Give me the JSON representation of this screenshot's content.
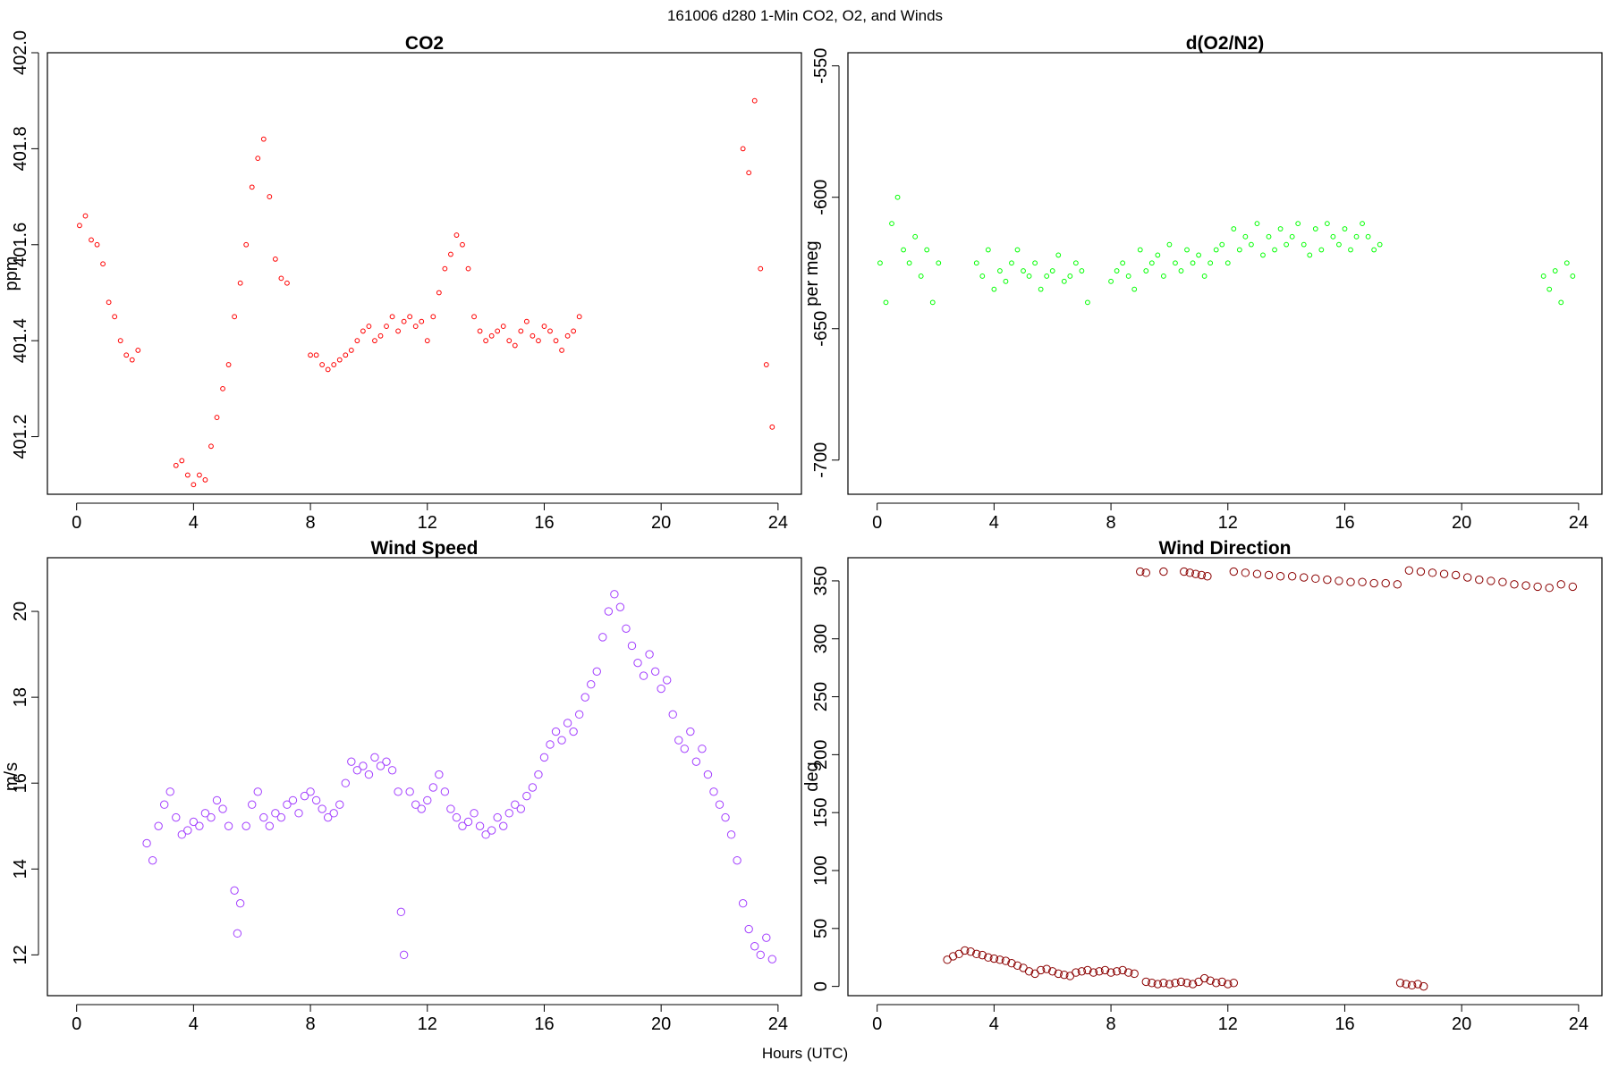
{
  "figure": {
    "title": "161006   d280   1-Min CO2, O2, and Winds",
    "xlabel": "Hours (UTC)"
  },
  "chart_data": [
    {
      "type": "scatter",
      "title": "CO2",
      "ylabel": "ppm",
      "xlim": [
        -1,
        24.8
      ],
      "ylim": [
        401.08,
        402.0
      ],
      "xticks": [
        "0",
        "4",
        "8",
        "12",
        "16",
        "20",
        "24"
      ],
      "yticks": [
        "401.2",
        "401.4",
        "401.6",
        "401.8",
        "402.0"
      ],
      "color": "#ff0000",
      "series": [
        {
          "x": [
            0.1,
            0.3,
            0.5,
            0.7,
            0.9,
            1.1,
            1.3,
            1.5,
            1.7,
            1.9,
            2.1,
            3.4,
            3.6,
            3.8,
            4.0,
            4.2,
            4.4,
            4.6,
            4.8,
            5.0,
            5.2,
            5.4,
            5.6,
            5.8,
            6.0,
            6.2,
            6.4,
            6.6,
            6.8,
            7.0,
            7.2,
            8.0,
            8.2,
            8.4,
            8.6,
            8.8,
            9.0,
            9.2,
            9.4,
            9.6,
            9.8,
            10.0,
            10.2,
            10.4,
            10.6,
            10.8,
            11.0,
            11.2,
            11.4,
            11.6,
            11.8,
            12.0,
            12.2,
            12.4,
            12.6,
            12.8,
            13.0,
            13.2,
            13.4,
            13.6,
            13.8,
            14.0,
            14.2,
            14.4,
            14.6,
            14.8,
            15.0,
            15.2,
            15.4,
            15.6,
            15.8,
            16.0,
            16.2,
            16.4,
            16.6,
            16.8,
            17.0,
            17.2,
            22.8,
            23.0,
            23.2,
            23.4,
            23.6,
            23.8
          ],
          "y": [
            401.64,
            401.66,
            401.61,
            401.6,
            401.56,
            401.48,
            401.45,
            401.4,
            401.37,
            401.36,
            401.38,
            401.14,
            401.15,
            401.12,
            401.1,
            401.12,
            401.11,
            401.18,
            401.24,
            401.3,
            401.35,
            401.45,
            401.52,
            401.6,
            401.72,
            401.78,
            401.82,
            401.7,
            401.57,
            401.53,
            401.52,
            401.37,
            401.37,
            401.35,
            401.34,
            401.35,
            401.36,
            401.37,
            401.38,
            401.4,
            401.42,
            401.43,
            401.4,
            401.41,
            401.43,
            401.45,
            401.42,
            401.44,
            401.45,
            401.43,
            401.44,
            401.4,
            401.45,
            401.5,
            401.55,
            401.58,
            401.62,
            401.6,
            401.55,
            401.45,
            401.42,
            401.4,
            401.41,
            401.42,
            401.43,
            401.4,
            401.39,
            401.42,
            401.44,
            401.41,
            401.4,
            401.43,
            401.42,
            401.4,
            401.38,
            401.41,
            401.42,
            401.45,
            401.8,
            401.75,
            401.9,
            401.55,
            401.35,
            401.22
          ]
        }
      ]
    },
    {
      "type": "scatter",
      "title": "d(O2/N2)",
      "ylabel": "per meg",
      "xlim": [
        -1,
        24.8
      ],
      "ylim": [
        -713,
        -545
      ],
      "xticks": [
        "0",
        "4",
        "8",
        "12",
        "16",
        "20",
        "24"
      ],
      "yticks": [
        "-700",
        "-650",
        "-600",
        "-550"
      ],
      "color": "#00ff00",
      "series": [
        {
          "x": [
            0.1,
            0.3,
            0.5,
            0.7,
            0.9,
            1.1,
            1.3,
            1.5,
            1.7,
            1.9,
            2.1,
            3.4,
            3.6,
            3.8,
            4.0,
            4.2,
            4.4,
            4.6,
            4.8,
            5.0,
            5.2,
            5.4,
            5.6,
            5.8,
            6.0,
            6.2,
            6.4,
            6.6,
            6.8,
            7.0,
            7.2,
            8.0,
            8.2,
            8.4,
            8.6,
            8.8,
            9.0,
            9.2,
            9.4,
            9.6,
            9.8,
            10.0,
            10.2,
            10.4,
            10.6,
            10.8,
            11.0,
            11.2,
            11.4,
            11.6,
            11.8,
            12.0,
            12.2,
            12.4,
            12.6,
            12.8,
            13.0,
            13.2,
            13.4,
            13.6,
            13.8,
            14.0,
            14.2,
            14.4,
            14.6,
            14.8,
            15.0,
            15.2,
            15.4,
            15.6,
            15.8,
            16.0,
            16.2,
            16.4,
            16.6,
            16.8,
            17.0,
            17.2,
            22.8,
            23.0,
            23.2,
            23.4,
            23.6,
            23.8
          ],
          "y": [
            -625,
            -640,
            -610,
            -600,
            -620,
            -625,
            -615,
            -630,
            -620,
            -640,
            -625,
            -625,
            -630,
            -620,
            -635,
            -628,
            -632,
            -625,
            -620,
            -628,
            -630,
            -625,
            -635,
            -630,
            -628,
            -622,
            -632,
            -630,
            -625,
            -628,
            -640,
            -632,
            -628,
            -625,
            -630,
            -635,
            -620,
            -628,
            -625,
            -622,
            -630,
            -618,
            -625,
            -628,
            -620,
            -625,
            -622,
            -630,
            -625,
            -620,
            -618,
            -625,
            -612,
            -620,
            -615,
            -618,
            -610,
            -622,
            -615,
            -620,
            -612,
            -618,
            -615,
            -610,
            -618,
            -622,
            -612,
            -620,
            -610,
            -615,
            -618,
            -612,
            -620,
            -615,
            -610,
            -615,
            -620,
            -618,
            -630,
            -635,
            -628,
            -640,
            -625,
            -630
          ]
        }
      ]
    },
    {
      "type": "scatter",
      "title": "Wind Speed",
      "ylabel": "m/s",
      "xlim": [
        -1,
        24.8
      ],
      "ylim": [
        11.05,
        21.25
      ],
      "xticks": [
        "0",
        "4",
        "8",
        "12",
        "16",
        "20",
        "24"
      ],
      "yticks": [
        "12",
        "14",
        "16",
        "18",
        "20"
      ],
      "color": "#a33fff",
      "series": [
        {
          "x": [
            2.4,
            2.6,
            2.8,
            3.0,
            3.2,
            3.4,
            3.6,
            3.8,
            4.0,
            4.2,
            4.4,
            4.6,
            4.8,
            5.0,
            5.2,
            5.4,
            5.5,
            5.6,
            5.8,
            6.0,
            6.2,
            6.4,
            6.6,
            6.8,
            7.0,
            7.2,
            7.4,
            7.6,
            7.8,
            8.0,
            8.2,
            8.4,
            8.6,
            8.8,
            9.0,
            9.2,
            9.4,
            9.6,
            9.8,
            10.0,
            10.2,
            10.4,
            10.6,
            10.8,
            11.0,
            11.1,
            11.2,
            11.4,
            11.6,
            11.8,
            12.0,
            12.2,
            12.4,
            12.6,
            12.8,
            13.0,
            13.2,
            13.4,
            13.6,
            13.8,
            14.0,
            14.2,
            14.4,
            14.6,
            14.8,
            15.0,
            15.2,
            15.4,
            15.6,
            15.8,
            16.0,
            16.2,
            16.4,
            16.6,
            16.8,
            17.0,
            17.2,
            17.4,
            17.6,
            17.8,
            18.0,
            18.2,
            18.4,
            18.6,
            18.8,
            19.0,
            19.2,
            19.4,
            19.6,
            19.8,
            20.0,
            20.2,
            20.4,
            20.6,
            20.8,
            21.0,
            21.2,
            21.4,
            21.6,
            21.8,
            22.0,
            22.2,
            22.4,
            22.6,
            22.8,
            23.0,
            23.2,
            23.4,
            23.6,
            23.8
          ],
          "y": [
            14.6,
            14.2,
            15.0,
            15.5,
            15.8,
            15.2,
            14.8,
            14.9,
            15.1,
            15.0,
            15.3,
            15.2,
            15.6,
            15.4,
            15.0,
            13.5,
            12.5,
            13.2,
            15.0,
            15.5,
            15.8,
            15.2,
            15.0,
            15.3,
            15.2,
            15.5,
            15.6,
            15.3,
            15.7,
            15.8,
            15.6,
            15.4,
            15.2,
            15.3,
            15.5,
            16.0,
            16.5,
            16.3,
            16.4,
            16.2,
            16.6,
            16.4,
            16.5,
            16.3,
            15.8,
            13.0,
            12.0,
            15.8,
            15.5,
            15.4,
            15.6,
            15.9,
            16.2,
            15.8,
            15.4,
            15.2,
            15.0,
            15.1,
            15.3,
            15.0,
            14.8,
            14.9,
            15.2,
            15.0,
            15.3,
            15.5,
            15.4,
            15.7,
            15.9,
            16.2,
            16.6,
            16.9,
            17.2,
            17.0,
            17.4,
            17.2,
            17.6,
            18.0,
            18.3,
            18.6,
            19.4,
            20.0,
            20.4,
            20.1,
            19.6,
            19.2,
            18.8,
            18.5,
            19.0,
            18.6,
            18.2,
            18.4,
            17.6,
            17.0,
            16.8,
            17.2,
            16.5,
            16.8,
            16.2,
            15.8,
            15.5,
            15.2,
            14.8,
            14.2,
            13.2,
            12.6,
            12.2,
            12.0,
            12.4,
            11.9
          ]
        }
      ]
    },
    {
      "type": "scatter",
      "title": "Wind Direction",
      "ylabel": "deg",
      "xlim": [
        -1,
        24.8
      ],
      "ylim": [
        -8,
        370
      ],
      "xticks": [
        "0",
        "4",
        "8",
        "12",
        "16",
        "20",
        "24"
      ],
      "yticks": [
        "0",
        "50",
        "100",
        "150",
        "200",
        "250",
        "300",
        "350"
      ],
      "color": "#8b0000",
      "series": [
        {
          "x": [
            2.4,
            2.6,
            2.8,
            3.0,
            3.2,
            3.4,
            3.6,
            3.8,
            4.0,
            4.2,
            4.4,
            4.6,
            4.8,
            5.0,
            5.2,
            5.4,
            5.6,
            5.8,
            6.0,
            6.2,
            6.4,
            6.6,
            6.8,
            7.0,
            7.2,
            7.4,
            7.6,
            7.8,
            8.0,
            8.2,
            8.4,
            8.6,
            8.8,
            9.2,
            9.4,
            9.6,
            9.8,
            10.0,
            10.2,
            10.4,
            10.6,
            10.8,
            11.0,
            11.2,
            11.4,
            11.6,
            11.8,
            12.0,
            12.2,
            17.9,
            18.1,
            18.3,
            18.5,
            18.7,
            9.0,
            9.2,
            9.8,
            10.5,
            10.7,
            10.9,
            11.1,
            11.3,
            12.2,
            12.6,
            13.0,
            13.4,
            13.8,
            14.2,
            14.6,
            15.0,
            15.4,
            15.8,
            16.2,
            16.6,
            17.0,
            17.4,
            17.8,
            18.2,
            18.6,
            19.0,
            19.4,
            19.8,
            20.2,
            20.6,
            21.0,
            21.4,
            21.8,
            22.2,
            22.6,
            23.0,
            23.4,
            23.8
          ],
          "y": [
            23,
            26,
            28,
            31,
            30,
            28,
            27,
            25,
            24,
            23,
            22,
            20,
            18,
            16,
            13,
            11,
            14,
            15,
            13,
            11,
            10,
            9,
            12,
            13,
            14,
            12,
            13,
            14,
            12,
            13,
            14,
            12,
            11,
            4,
            3,
            2,
            3,
            2,
            3,
            4,
            3,
            2,
            4,
            7,
            5,
            3,
            4,
            2,
            3,
            3,
            2,
            1,
            2,
            0,
            358,
            357,
            358,
            358,
            357,
            356,
            355,
            354,
            358,
            357,
            356,
            355,
            354,
            354,
            353,
            352,
            351,
            350,
            349,
            349,
            348,
            348,
            347,
            359,
            358,
            357,
            356,
            355,
            353,
            351,
            350,
            349,
            347,
            346,
            345,
            344,
            347,
            345
          ]
        }
      ]
    }
  ]
}
